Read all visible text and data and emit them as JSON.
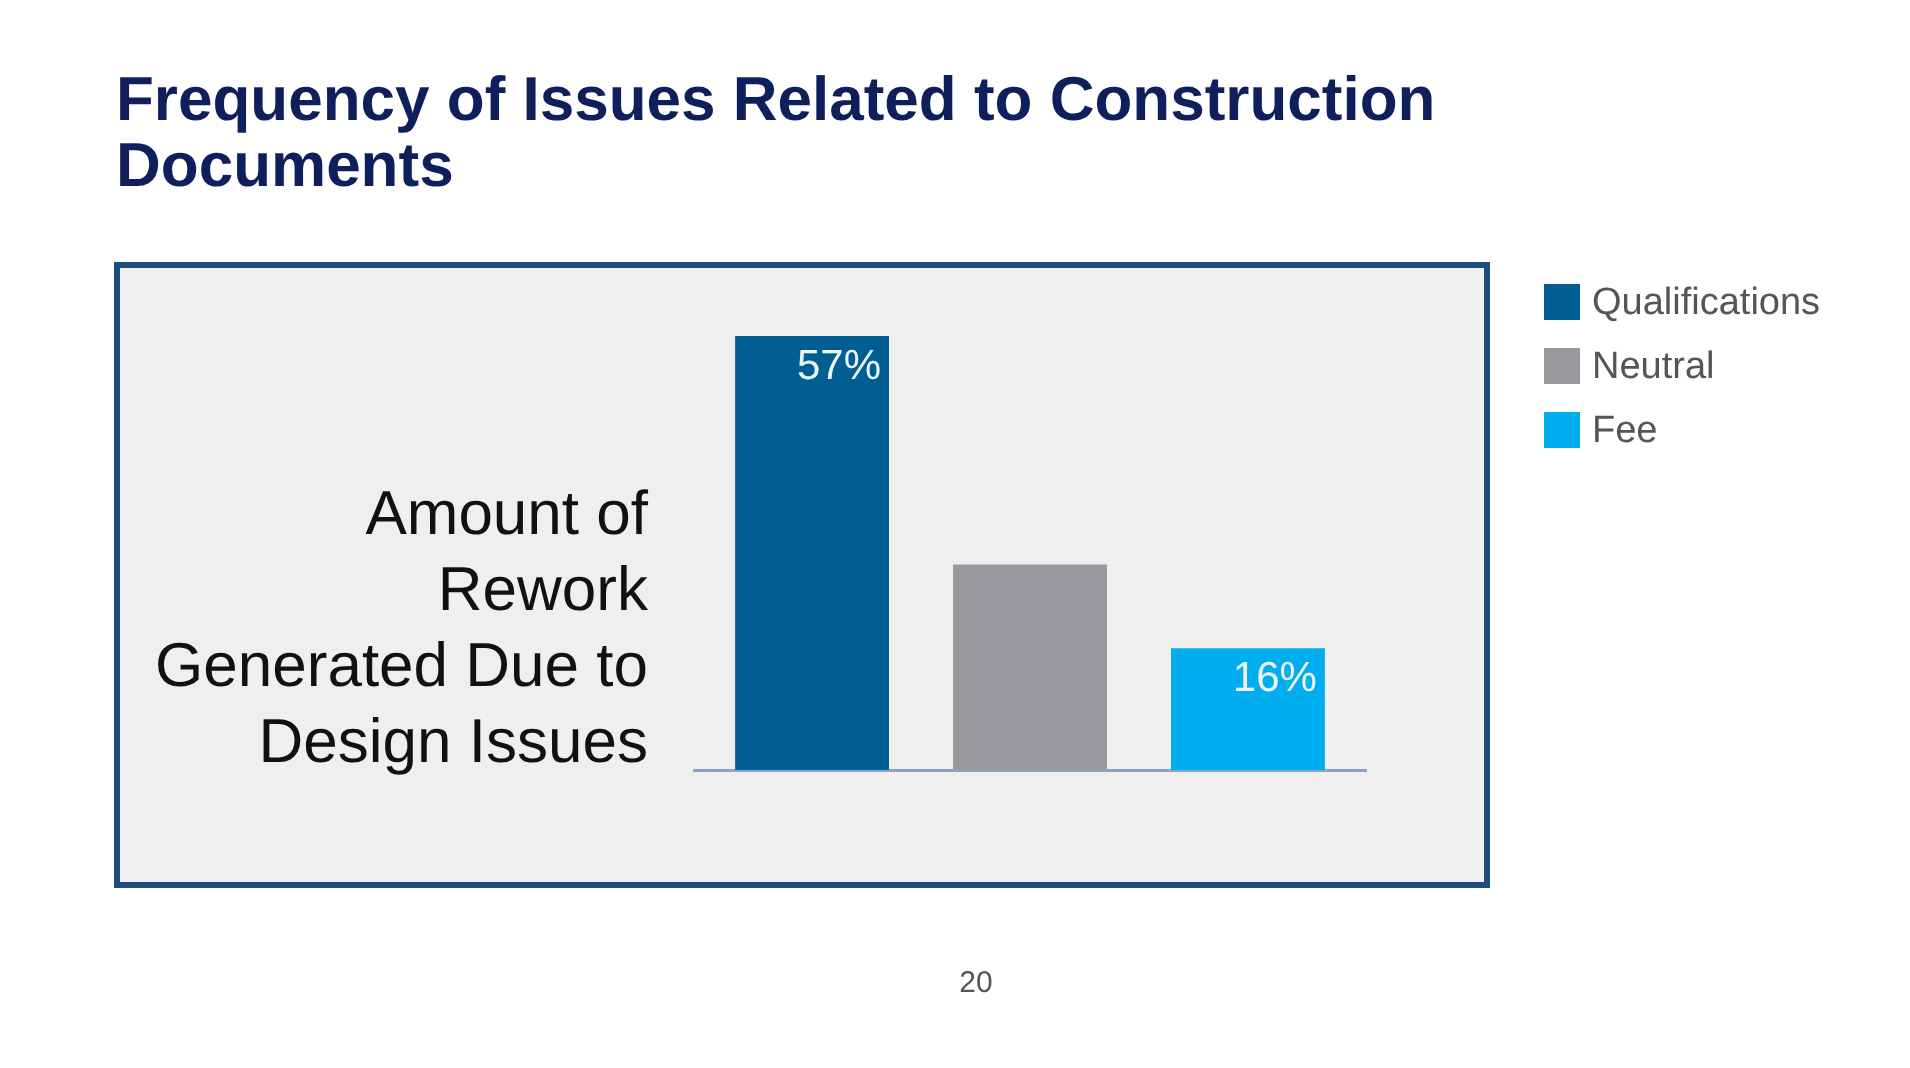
{
  "chart_data": {
    "type": "bar",
    "title": "Frequency of Issues Related to Construction Documents",
    "ylabel": "Amount of Rework Generated Due to Design Issues",
    "categories": [
      null
    ],
    "series": [
      {
        "name": "Qualifications",
        "color": "#005e92",
        "values": [
          57
        ],
        "value_labels": [
          "57%"
        ]
      },
      {
        "name": "Neutral",
        "color": "#98999d",
        "values": [
          27
        ],
        "value_labels": [
          null
        ]
      },
      {
        "name": "Fee",
        "color": "#00aeef",
        "values": [
          16
        ],
        "value_labels": [
          "16%"
        ]
      }
    ],
    "legend": "right",
    "annotations": [
      "20"
    ]
  }
}
